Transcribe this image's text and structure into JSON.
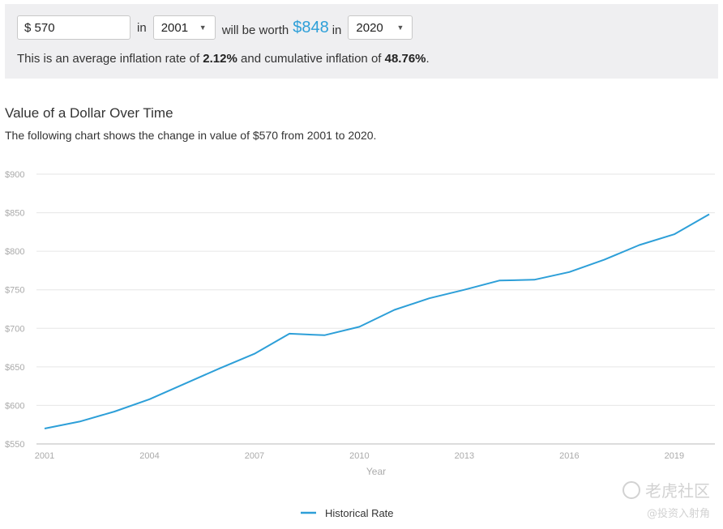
{
  "calculator": {
    "amount_value": "$ 570",
    "in_label_1": "in",
    "start_year": "2001",
    "worth_label": "will be worth",
    "worth_value": "$848",
    "in_label_2": "in",
    "end_year": "2020",
    "summary_prefix": "This is an average inflation rate of",
    "avg_rate": "2.12%",
    "summary_middle": "and cumulative inflation of",
    "cumulative": "48.76%",
    "summary_suffix": "."
  },
  "chart_header": {
    "title": "Value of a Dollar Over Time",
    "subtitle": "The following chart shows the change in value of $570 from 2001 to 2020."
  },
  "chart_data": {
    "type": "line",
    "title": "Value of a Dollar Over Time",
    "xlabel": "Year",
    "ylabel": "",
    "x": [
      2001,
      2002,
      2003,
      2004,
      2005,
      2006,
      2007,
      2008,
      2009,
      2010,
      2011,
      2012,
      2013,
      2014,
      2015,
      2016,
      2017,
      2018,
      2019,
      2020
    ],
    "series": [
      {
        "name": "Historical Rate",
        "color": "#2d9fd8",
        "values": [
          570,
          579,
          592,
          608,
          628,
          648,
          667,
          693,
          691,
          702,
          724,
          739,
          750,
          762,
          763,
          773,
          789,
          808,
          822,
          848
        ]
      }
    ],
    "ylim": [
      550,
      900
    ],
    "yticks": [
      550,
      600,
      650,
      700,
      750,
      800,
      850,
      900
    ],
    "ytick_labels": [
      "$550",
      "$600",
      "$650",
      "$700",
      "$750",
      "$800",
      "$850",
      "$900"
    ],
    "xticks": [
      2001,
      2004,
      2007,
      2010,
      2013,
      2016,
      2019
    ],
    "xtick_labels": [
      "2001",
      "2004",
      "2007",
      "2010",
      "2013",
      "2016",
      "2019"
    ],
    "grid": true,
    "legend_position": "bottom-center"
  },
  "watermark": {
    "line1": "老虎社区",
    "line2": "@投资入射角"
  }
}
